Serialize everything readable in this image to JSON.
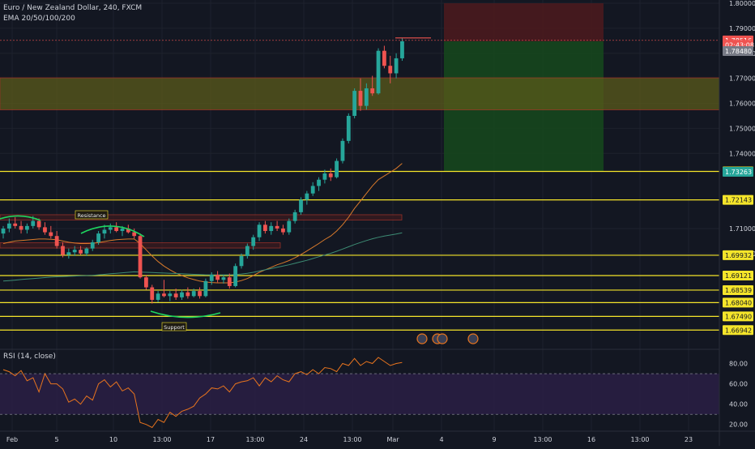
{
  "header": {
    "symbol_line": "Euro / New Zealand Dollar, 240, FXCM",
    "ema_line": "EMA 20/50/100/200",
    "rsi_line": "RSI (14, close)"
  },
  "colors": {
    "background": "#131722",
    "up": "#26a69a",
    "down": "#ef5350",
    "level": "#f5e52a",
    "stop_zone": "#4a1a1e",
    "target_zone": "#16461d",
    "rsi": "#e8741e",
    "rsi_band": "#2a1f44",
    "ema50": "#d97a2b",
    "ema200": "#3d8c74"
  },
  "chart_data": {
    "type": "candlestick",
    "symbol": "EURNZD",
    "timeframe": "240",
    "price_axis_ticks": [
      1.8,
      1.79,
      1.78,
      1.77,
      1.76,
      1.75,
      1.74,
      1.71,
      1.7
    ],
    "time_axis_ticks": [
      "Feb",
      "5",
      "10",
      "13:00",
      "17",
      "13:00",
      "24",
      "13:00",
      "Mar",
      "4",
      "9",
      "13:00",
      "16",
      "13:00",
      "23"
    ],
    "price_range": [
      1.664,
      1.8
    ],
    "rsi_ticks": [
      80,
      60,
      40,
      20
    ],
    "rsi_range": [
      15,
      90
    ],
    "levels": [
      {
        "price": 1.7328,
        "label": "1.73280"
      },
      {
        "price": 1.72143,
        "label": "1.72143"
      },
      {
        "price": 1.69932,
        "label": "1.69932"
      },
      {
        "price": 1.69121,
        "label": "1.69121"
      },
      {
        "price": 1.68539,
        "label": "1.68539"
      },
      {
        "price": 1.6804,
        "label": "1.68040"
      },
      {
        "price": 1.6749,
        "label": "1.67490"
      },
      {
        "price": 1.66942,
        "label": "1.66942"
      }
    ],
    "price_badges": [
      {
        "price": 1.78516,
        "label": "1.78516",
        "color": "#ef5350"
      },
      {
        "price": 1.7834,
        "label": "02:43:08",
        "color": "#ef5350"
      },
      {
        "price": 1.7809,
        "label": "1.78480",
        "color": "#787b86"
      },
      {
        "price": 1.73263,
        "label": "1.73263",
        "color": "#26a69a"
      }
    ],
    "zones": [
      {
        "name": "upper-zone",
        "top": 1.7702,
        "bottom": 1.7574
      },
      {
        "name": "resistance-zone",
        "top": 1.7155,
        "bottom": 1.7134
      },
      {
        "name": "lower-zone",
        "top": 1.7043,
        "bottom": 1.7022
      }
    ],
    "position": {
      "stop_top": 1.8,
      "entry": 1.7848,
      "target": 1.7328
    },
    "annotations": {
      "resistance": "Resistance",
      "support": "Support"
    },
    "candles": [
      {
        "t": 0,
        "o": 1.708,
        "h": 1.711,
        "l": 1.706,
        "c": 1.71
      },
      {
        "t": 1,
        "o": 1.71,
        "h": 1.714,
        "l": 1.7085,
        "c": 1.712
      },
      {
        "t": 2,
        "o": 1.712,
        "h": 1.7145,
        "l": 1.71,
        "c": 1.711
      },
      {
        "t": 3,
        "o": 1.711,
        "h": 1.713,
        "l": 1.708,
        "c": 1.7095
      },
      {
        "t": 4,
        "o": 1.7095,
        "h": 1.712,
        "l": 1.708,
        "c": 1.711
      },
      {
        "t": 5,
        "o": 1.711,
        "h": 1.715,
        "l": 1.71,
        "c": 1.713
      },
      {
        "t": 6,
        "o": 1.713,
        "h": 1.714,
        "l": 1.7095,
        "c": 1.7105
      },
      {
        "t": 7,
        "o": 1.7105,
        "h": 1.7125,
        "l": 1.7075,
        "c": 1.7085
      },
      {
        "t": 8,
        "o": 1.7085,
        "h": 1.711,
        "l": 1.706,
        "c": 1.707
      },
      {
        "t": 9,
        "o": 1.707,
        "h": 1.709,
        "l": 1.702,
        "c": 1.703
      },
      {
        "t": 10,
        "o": 1.703,
        "h": 1.7045,
        "l": 1.6985,
        "c": 1.6995
      },
      {
        "t": 11,
        "o": 1.6995,
        "h": 1.702,
        "l": 1.698,
        "c": 1.7005
      },
      {
        "t": 12,
        "o": 1.7005,
        "h": 1.703,
        "l": 1.699,
        "c": 1.7015
      },
      {
        "t": 13,
        "o": 1.7015,
        "h": 1.703,
        "l": 1.6995,
        "c": 1.7
      },
      {
        "t": 14,
        "o": 1.7,
        "h": 1.7025,
        "l": 1.699,
        "c": 1.702
      },
      {
        "t": 15,
        "o": 1.702,
        "h": 1.7055,
        "l": 1.701,
        "c": 1.7045
      },
      {
        "t": 16,
        "o": 1.7045,
        "h": 1.709,
        "l": 1.7035,
        "c": 1.708
      },
      {
        "t": 17,
        "o": 1.708,
        "h": 1.7115,
        "l": 1.706,
        "c": 1.7095
      },
      {
        "t": 18,
        "o": 1.7095,
        "h": 1.712,
        "l": 1.708,
        "c": 1.7105
      },
      {
        "t": 19,
        "o": 1.7105,
        "h": 1.7125,
        "l": 1.7085,
        "c": 1.709
      },
      {
        "t": 20,
        "o": 1.709,
        "h": 1.711,
        "l": 1.707,
        "c": 1.71
      },
      {
        "t": 21,
        "o": 1.71,
        "h": 1.7115,
        "l": 1.708,
        "c": 1.7085
      },
      {
        "t": 22,
        "o": 1.7085,
        "h": 1.71,
        "l": 1.706,
        "c": 1.707
      },
      {
        "t": 23,
        "o": 1.707,
        "h": 1.708,
        "l": 1.69,
        "c": 1.6905
      },
      {
        "t": 24,
        "o": 1.6905,
        "h": 1.6915,
        "l": 1.6855,
        "c": 1.6865
      },
      {
        "t": 25,
        "o": 1.6865,
        "h": 1.6875,
        "l": 1.68,
        "c": 1.6815
      },
      {
        "t": 26,
        "o": 1.6815,
        "h": 1.685,
        "l": 1.6805,
        "c": 1.684
      },
      {
        "t": 27,
        "o": 1.684,
        "h": 1.6895,
        "l": 1.6825,
        "c": 1.683
      },
      {
        "t": 28,
        "o": 1.683,
        "h": 1.685,
        "l": 1.681,
        "c": 1.684
      },
      {
        "t": 29,
        "o": 1.684,
        "h": 1.686,
        "l": 1.6815,
        "c": 1.6825
      },
      {
        "t": 30,
        "o": 1.6825,
        "h": 1.6855,
        "l": 1.6815,
        "c": 1.6845
      },
      {
        "t": 31,
        "o": 1.6845,
        "h": 1.6865,
        "l": 1.682,
        "c": 1.683
      },
      {
        "t": 32,
        "o": 1.683,
        "h": 1.686,
        "l": 1.6825,
        "c": 1.685
      },
      {
        "t": 33,
        "o": 1.685,
        "h": 1.6865,
        "l": 1.682,
        "c": 1.683
      },
      {
        "t": 34,
        "o": 1.683,
        "h": 1.69,
        "l": 1.6825,
        "c": 1.689
      },
      {
        "t": 35,
        "o": 1.689,
        "h": 1.6925,
        "l": 1.6875,
        "c": 1.6915
      },
      {
        "t": 36,
        "o": 1.6915,
        "h": 1.693,
        "l": 1.6885,
        "c": 1.6895
      },
      {
        "t": 37,
        "o": 1.6895,
        "h": 1.6915,
        "l": 1.688,
        "c": 1.6905
      },
      {
        "t": 38,
        "o": 1.6905,
        "h": 1.692,
        "l": 1.686,
        "c": 1.687
      },
      {
        "t": 39,
        "o": 1.687,
        "h": 1.696,
        "l": 1.6865,
        "c": 1.695
      },
      {
        "t": 40,
        "o": 1.695,
        "h": 1.7,
        "l": 1.694,
        "c": 1.699
      },
      {
        "t": 41,
        "o": 1.699,
        "h": 1.704,
        "l": 1.698,
        "c": 1.703
      },
      {
        "t": 42,
        "o": 1.703,
        "h": 1.7075,
        "l": 1.7015,
        "c": 1.7065
      },
      {
        "t": 43,
        "o": 1.7065,
        "h": 1.7125,
        "l": 1.705,
        "c": 1.7115
      },
      {
        "t": 44,
        "o": 1.7115,
        "h": 1.713,
        "l": 1.708,
        "c": 1.709
      },
      {
        "t": 45,
        "o": 1.709,
        "h": 1.7125,
        "l": 1.7075,
        "c": 1.711
      },
      {
        "t": 46,
        "o": 1.711,
        "h": 1.713,
        "l": 1.709,
        "c": 1.71
      },
      {
        "t": 47,
        "o": 1.71,
        "h": 1.7115,
        "l": 1.7075,
        "c": 1.7085
      },
      {
        "t": 48,
        "o": 1.7085,
        "h": 1.714,
        "l": 1.7075,
        "c": 1.713
      },
      {
        "t": 49,
        "o": 1.713,
        "h": 1.7175,
        "l": 1.712,
        "c": 1.7165
      },
      {
        "t": 50,
        "o": 1.7165,
        "h": 1.7225,
        "l": 1.7155,
        "c": 1.7215
      },
      {
        "t": 51,
        "o": 1.7215,
        "h": 1.725,
        "l": 1.7195,
        "c": 1.724
      },
      {
        "t": 52,
        "o": 1.724,
        "h": 1.7285,
        "l": 1.723,
        "c": 1.727
      },
      {
        "t": 53,
        "o": 1.727,
        "h": 1.7305,
        "l": 1.725,
        "c": 1.7295
      },
      {
        "t": 54,
        "o": 1.7295,
        "h": 1.7335,
        "l": 1.728,
        "c": 1.732
      },
      {
        "t": 55,
        "o": 1.732,
        "h": 1.734,
        "l": 1.729,
        "c": 1.7305
      },
      {
        "t": 56,
        "o": 1.7305,
        "h": 1.738,
        "l": 1.73,
        "c": 1.737
      },
      {
        "t": 57,
        "o": 1.737,
        "h": 1.746,
        "l": 1.736,
        "c": 1.745
      },
      {
        "t": 58,
        "o": 1.745,
        "h": 1.756,
        "l": 1.744,
        "c": 1.755
      },
      {
        "t": 59,
        "o": 1.755,
        "h": 1.766,
        "l": 1.754,
        "c": 1.765
      },
      {
        "t": 60,
        "o": 1.765,
        "h": 1.77,
        "l": 1.757,
        "c": 1.759
      },
      {
        "t": 61,
        "o": 1.759,
        "h": 1.768,
        "l": 1.7575,
        "c": 1.766
      },
      {
        "t": 62,
        "o": 1.766,
        "h": 1.771,
        "l": 1.763,
        "c": 1.764
      },
      {
        "t": 63,
        "o": 1.764,
        "h": 1.782,
        "l": 1.7635,
        "c": 1.781
      },
      {
        "t": 64,
        "o": 1.781,
        "h": 1.783,
        "l": 1.774,
        "c": 1.775
      },
      {
        "t": 65,
        "o": 1.775,
        "h": 1.779,
        "l": 1.768,
        "c": 1.772
      },
      {
        "t": 66,
        "o": 1.772,
        "h": 1.78,
        "l": 1.77,
        "c": 1.778
      },
      {
        "t": 67,
        "o": 1.778,
        "h": 1.786,
        "l": 1.777,
        "c": 1.7848
      }
    ],
    "ema50": [
      1.704,
      1.7045,
      1.705,
      1.7052,
      1.7054,
      1.7056,
      1.7058,
      1.7058,
      1.7057,
      1.7055,
      1.705,
      1.7045,
      1.7042,
      1.704,
      1.704,
      1.7041,
      1.7044,
      1.7048,
      1.7052,
      1.7055,
      1.7057,
      1.7058,
      1.7058,
      1.704,
      1.7015,
      1.699,
      1.6968,
      1.695,
      1.6935,
      1.6922,
      1.6912,
      1.6903,
      1.6896,
      1.689,
      1.6886,
      1.6884,
      1.6883,
      1.6883,
      1.6883,
      1.6886,
      1.6892,
      1.69,
      1.6912,
      1.6925,
      1.6935,
      1.6945,
      1.6955,
      1.6963,
      1.6972,
      1.6983,
      1.6996,
      1.701,
      1.7025,
      1.704,
      1.7056,
      1.707,
      1.709,
      1.7115,
      1.7145,
      1.718,
      1.721,
      1.724,
      1.727,
      1.7295,
      1.731,
      1.7325,
      1.734,
      1.736
    ],
    "ema200": [
      1.689,
      1.6892,
      1.6894,
      1.6896,
      1.6898,
      1.69,
      1.6902,
      1.6904,
      1.6906,
      1.6907,
      1.6908,
      1.6909,
      1.691,
      1.6911,
      1.6912,
      1.6913,
      1.6915,
      1.6917,
      1.6919,
      1.6921,
      1.6923,
      1.6925,
      1.6927,
      1.6926,
      1.6925,
      1.6924,
      1.6923,
      1.6922,
      1.6921,
      1.692,
      1.6919,
      1.6918,
      1.6917,
      1.6916,
      1.6915,
      1.6915,
      1.6915,
      1.6915,
      1.6915,
      1.6916,
      1.6918,
      1.6921,
      1.6925,
      1.693,
      1.6935,
      1.694,
      1.6945,
      1.695,
      1.6955,
      1.6961,
      1.6967,
      1.6973,
      1.698,
      1.6987,
      1.6994,
      1.7001,
      1.7009,
      1.7018,
      1.7027,
      1.7036,
      1.7044,
      1.7052,
      1.7059,
      1.7065,
      1.707,
      1.7074,
      1.7078,
      1.7083
    ],
    "rsi": [
      74,
      72,
      68,
      73,
      63,
      66,
      52,
      70,
      60,
      60,
      55,
      42,
      45,
      40,
      48,
      44,
      60,
      64,
      57,
      62,
      53,
      56,
      50,
      22,
      20,
      17,
      25,
      22,
      32,
      28,
      33,
      35,
      38,
      46,
      50,
      56,
      55,
      58,
      52,
      60,
      62,
      63,
      66,
      58,
      66,
      62,
      68,
      64,
      62,
      70,
      72,
      69,
      74,
      70,
      76,
      75,
      72,
      80,
      78,
      85,
      78,
      82,
      80,
      86,
      82,
      78,
      80,
      81
    ]
  }
}
